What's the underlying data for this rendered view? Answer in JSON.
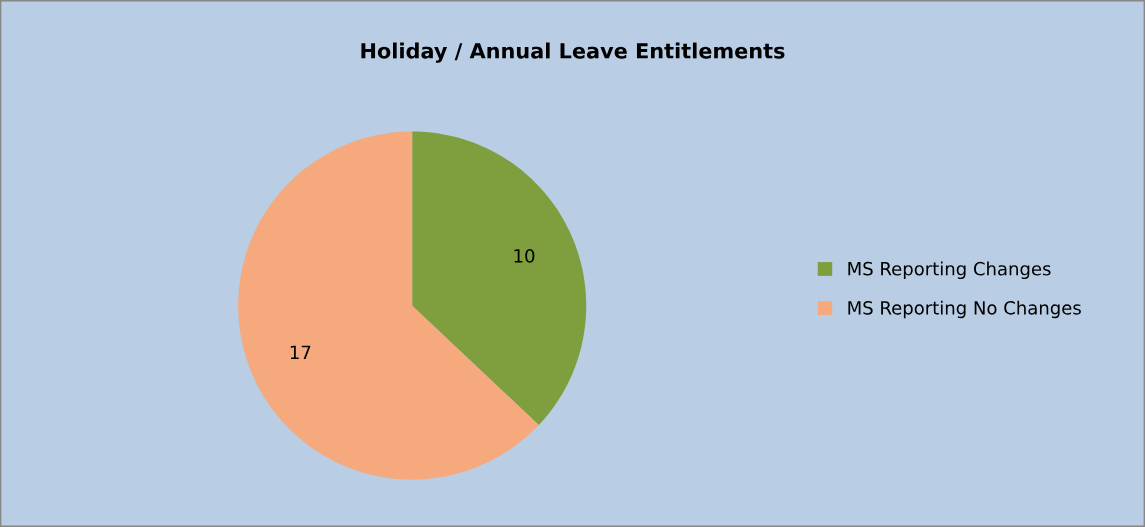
{
  "chart_data": {
    "type": "pie",
    "title": "Holiday / Annual Leave Entitlements",
    "categories": [
      "MS Reporting Changes",
      "MS Reporting No Changes"
    ],
    "values": [
      10,
      17
    ],
    "colors": [
      "#7f9f3f",
      "#f6a97c"
    ],
    "data_labels": true,
    "legend": "right"
  }
}
